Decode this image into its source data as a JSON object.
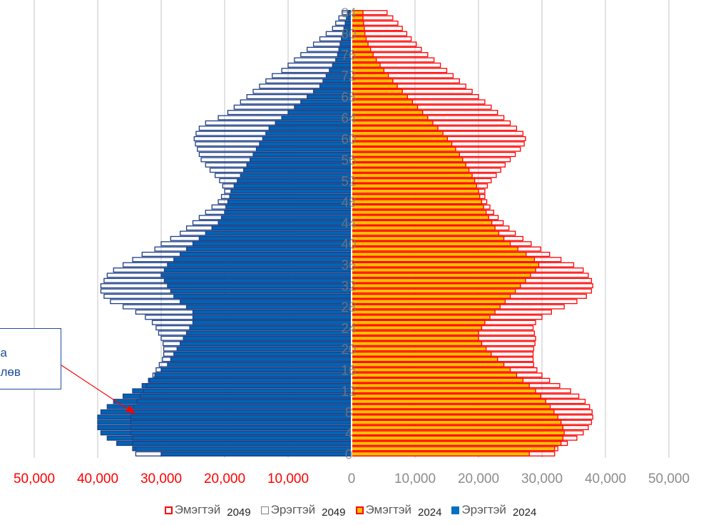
{
  "chart_data": {
    "type": "bar",
    "orientation": "horizontal",
    "title": "",
    "xlabel": "",
    "ylabel": "",
    "xlim": [
      -50000,
      50000
    ],
    "x_ticks": [
      {
        "label": "50,000",
        "value": -50000,
        "color": "#ff0000"
      },
      {
        "label": "40,000",
        "value": -40000,
        "color": "#ff0000"
      },
      {
        "label": "30,000",
        "value": -30000,
        "color": "#ff0000"
      },
      {
        "label": "20,000",
        "value": -20000,
        "color": "#ff0000"
      },
      {
        "label": "10,000",
        "value": -10000,
        "color": "#ff0000"
      },
      {
        "label": "0",
        "value": 0,
        "color": "#8c8c8c"
      },
      {
        "label": "10,000",
        "value": 10000,
        "color": "#8c8c8c"
      },
      {
        "label": "20,000",
        "value": 20000,
        "color": "#8c8c8c"
      },
      {
        "label": "30,000",
        "value": 30000,
        "color": "#8c8c8c"
      },
      {
        "label": "40,000",
        "value": 40000,
        "color": "#8c8c8c"
      },
      {
        "label": "50,000",
        "value": 50000,
        "color": "#8c8c8c"
      }
    ],
    "age_labels": [
      "0",
      "4",
      "8",
      "12",
      "16",
      "20",
      "24",
      "28",
      "32",
      "36",
      "40",
      "44",
      "48",
      "52",
      "56",
      "60",
      "64",
      "68",
      "72",
      "76",
      "80",
      "84"
    ],
    "age_label_values": [
      0,
      4,
      8,
      12,
      16,
      20,
      24,
      28,
      32,
      36,
      40,
      44,
      48,
      52,
      56,
      60,
      64,
      68,
      72,
      76,
      80,
      84
    ],
    "grid": true,
    "legend_position": "bottom",
    "series_keys": [
      {
        "key": "female_2049",
        "label": "Эмэгтэй",
        "year": "2049",
        "side": "right",
        "fill": "none",
        "stroke": "#ff0000",
        "swatch_fill": "#ffffff",
        "swatch_stroke": "#ff0000"
      },
      {
        "key": "male_2049",
        "label": "Эрэгтэй",
        "year": "2049",
        "side": "left",
        "fill": "none",
        "stroke": "#1f3f86",
        "swatch_fill": "#ffffff",
        "swatch_stroke": "#7f7f7f"
      },
      {
        "key": "female_2024",
        "label": "Эмэгтэй",
        "year": "2024",
        "side": "right",
        "fill": "#ffc000",
        "stroke": "#ff0000",
        "swatch_fill": "#ffc000",
        "swatch_stroke": "#ff0000"
      },
      {
        "key": "male_2024",
        "label": "Эрэгтэй",
        "year": "2024",
        "side": "left",
        "fill": "#0064b4",
        "stroke": "#1f3f86",
        "swatch_fill": "#0070c0",
        "swatch_stroke": "#0070c0"
      }
    ],
    "ages": [
      0,
      1,
      2,
      3,
      4,
      5,
      6,
      7,
      8,
      9,
      10,
      11,
      12,
      13,
      14,
      15,
      16,
      17,
      18,
      19,
      20,
      21,
      22,
      23,
      24,
      25,
      26,
      27,
      28,
      29,
      30,
      31,
      32,
      33,
      34,
      35,
      36,
      37,
      38,
      39,
      40,
      41,
      42,
      43,
      44,
      45,
      46,
      47,
      48,
      49,
      50,
      51,
      52,
      53,
      54,
      55,
      56,
      57,
      58,
      59,
      60,
      61,
      62,
      63,
      64,
      65,
      66,
      67,
      68,
      69,
      70,
      71,
      72,
      73,
      74,
      75,
      76,
      77,
      78,
      79,
      80,
      81,
      82,
      83,
      84
    ],
    "male_2024": [
      30000,
      34500,
      37000,
      38500,
      39500,
      40000,
      40000,
      40000,
      39500,
      38500,
      37500,
      36000,
      34500,
      33000,
      32000,
      31000,
      30000,
      29000,
      28500,
      28000,
      27500,
      27000,
      26500,
      26000,
      25500,
      25000,
      25000,
      25000,
      26000,
      27000,
      28000,
      28500,
      29000,
      29500,
      30000,
      29500,
      29000,
      28000,
      27000,
      26000,
      25000,
      24000,
      23000,
      22000,
      21000,
      20500,
      20000,
      19800,
      19500,
      19200,
      19000,
      18500,
      18000,
      17500,
      17000,
      16500,
      16000,
      15500,
      15000,
      14500,
      14000,
      13500,
      13000,
      12000,
      11000,
      10000,
      9000,
      8000,
      7000,
      6000,
      5000,
      4500,
      4000,
      3500,
      3000,
      2500,
      2200,
      2000,
      1800,
      1600,
      1400,
      1200,
      1000,
      800,
      600
    ],
    "male_2049": [
      34000,
      34000,
      34500,
      34500,
      34800,
      34800,
      34800,
      34800,
      34600,
      34300,
      33800,
      33300,
      32800,
      32300,
      31800,
      31300,
      30800,
      30300,
      29800,
      29600,
      29600,
      29700,
      30000,
      30400,
      30800,
      31400,
      32500,
      34000,
      36000,
      38000,
      39000,
      39500,
      39500,
      39000,
      38500,
      37500,
      36000,
      34500,
      33000,
      31000,
      30000,
      28500,
      27000,
      26000,
      25000,
      24000,
      23000,
      22000,
      21000,
      20500,
      20000,
      20300,
      20800,
      21500,
      22300,
      23000,
      23700,
      24000,
      24300,
      24600,
      24800,
      24500,
      24000,
      23000,
      21000,
      19500,
      18500,
      17500,
      16500,
      15500,
      14500,
      13500,
      12500,
      11000,
      10000,
      9000,
      8000,
      7000,
      6000,
      5000,
      4000,
      3000,
      2500,
      2000,
      1500
    ],
    "female_2024": [
      28000,
      32000,
      33000,
      33300,
      33500,
      33300,
      33000,
      32500,
      31900,
      31300,
      30600,
      29800,
      29000,
      28000,
      27000,
      26000,
      25000,
      24000,
      23000,
      22000,
      21200,
      20500,
      20000,
      20000,
      20500,
      21000,
      21800,
      22600,
      23400,
      24200,
      25000,
      25800,
      26600,
      27400,
      28200,
      29000,
      29500,
      28800,
      27500,
      26200,
      25000,
      24000,
      23200,
      22600,
      22100,
      21600,
      21200,
      20800,
      20500,
      20200,
      20000,
      19700,
      19400,
      19000,
      18500,
      18000,
      17500,
      17000,
      16400,
      15800,
      15100,
      14400,
      13600,
      12800,
      12000,
      11200,
      10400,
      9600,
      8800,
      8000,
      7200,
      6500,
      5800,
      5100,
      4500,
      3900,
      3400,
      3000,
      2600,
      2300,
      2100,
      2000,
      1900,
      1800,
      1800
    ],
    "female_2049": [
      32000,
      32500,
      34000,
      35500,
      36500,
      37300,
      37800,
      38000,
      37900,
      37500,
      36800,
      35800,
      34500,
      32800,
      31200,
      30000,
      29200,
      28700,
      28600,
      28600,
      28700,
      28900,
      29000,
      28800,
      28600,
      29000,
      30000,
      31500,
      33500,
      35500,
      37000,
      37800,
      38000,
      37800,
      37300,
      36500,
      35000,
      33000,
      31200,
      29800,
      28300,
      27000,
      25800,
      24800,
      23900,
      23100,
      22400,
      21800,
      21300,
      21000,
      21000,
      21400,
      22000,
      22800,
      23500,
      24200,
      25000,
      25800,
      26600,
      27200,
      27400,
      27000,
      26000,
      25000,
      24000,
      23000,
      22000,
      21000,
      20000,
      19000,
      18000,
      17000,
      16000,
      15000,
      14000,
      13000,
      12000,
      11000,
      10200,
      9400,
      8700,
      8000,
      7300,
      6500,
      5600
    ]
  },
  "legend": {
    "items": [
      {
        "label": "Эмэгтэй",
        "year": "2049"
      },
      {
        "label": "Эрэгтэй",
        "year": "2049"
      },
      {
        "label": "Эмэгтэй",
        "year": "2024"
      },
      {
        "label": "Эрэгтэй",
        "year": "2024"
      }
    ]
  },
  "callout": {
    "line1": "на",
    "line2": "өлөв",
    "border_color": "#1f4e9c",
    "arrow_color": "#ff0000"
  }
}
